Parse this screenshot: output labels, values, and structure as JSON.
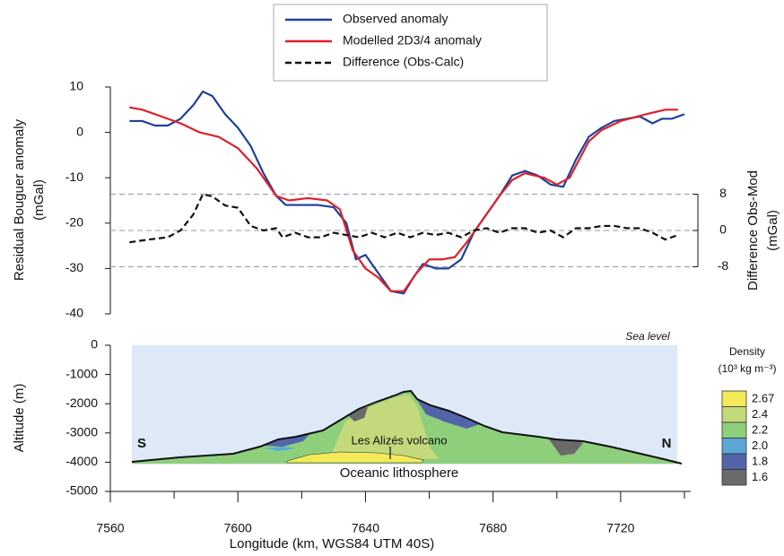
{
  "chart_data": [
    {
      "type": "line",
      "ylabel": [
        "Residual Bouguer anomaly",
        "(mGal)"
      ],
      "y2label": [
        "Difference Obs-Mod",
        "(mGal)"
      ],
      "xlim": [
        7560,
        7740
      ],
      "ylim": [
        -40,
        10
      ],
      "yticks": [
        -40,
        -30,
        -20,
        -10,
        0,
        10
      ],
      "y2lim": [
        -8,
        8
      ],
      "y2ticks": [
        -8,
        0,
        8
      ],
      "grid": "y2",
      "series": [
        {
          "name": "Observed anomaly",
          "color": "#1f3f9a",
          "style": "solid",
          "x": [
            7566,
            7570,
            7574,
            7578,
            7582,
            7586,
            7589,
            7592,
            7596,
            7600,
            7604,
            7608,
            7612,
            7615,
            7620,
            7625,
            7630,
            7634,
            7637,
            7640,
            7644,
            7648,
            7652,
            7655,
            7658,
            7662,
            7666,
            7670,
            7674,
            7678,
            7682,
            7686,
            7690,
            7694,
            7698,
            7702,
            7706,
            7710,
            7714,
            7718,
            7722,
            7726,
            7730,
            7733,
            7736,
            7740
          ],
          "values": [
            2.5,
            2.5,
            1.5,
            1.5,
            3,
            6,
            9,
            8,
            4,
            1,
            -3,
            -9,
            -14,
            -16,
            -16,
            -16,
            -16.5,
            -20,
            -28,
            -27,
            -31,
            -35,
            -35.5,
            -32,
            -29,
            -30,
            -30,
            -28,
            -22,
            -18,
            -14,
            -9.5,
            -8.5,
            -9.5,
            -11.5,
            -12,
            -6,
            -1,
            1,
            2.5,
            3,
            3.5,
            2,
            3,
            3,
            4
          ]
        },
        {
          "name": "Modelled 2D3/4 anomaly",
          "color": "#e0202a",
          "style": "solid",
          "x": [
            7566,
            7570,
            7576,
            7582,
            7588,
            7594,
            7600,
            7606,
            7612,
            7616,
            7622,
            7628,
            7632,
            7636,
            7640,
            7644,
            7648,
            7652,
            7656,
            7660,
            7664,
            7668,
            7672,
            7678,
            7682,
            7686,
            7690,
            7696,
            7700,
            7704,
            7710,
            7714,
            7720,
            7728,
            7734,
            7738
          ],
          "values": [
            5.5,
            5,
            3.5,
            2,
            0,
            -1,
            -3.5,
            -8,
            -14,
            -15,
            -14.5,
            -15,
            -17,
            -26,
            -30,
            -32,
            -35,
            -35,
            -31,
            -28,
            -28,
            -27.5,
            -24,
            -18,
            -14,
            -10.5,
            -9,
            -10,
            -11.5,
            -10,
            -2,
            0.5,
            2.5,
            4,
            5,
            5
          ]
        },
        {
          "name": "Difference (Obs-Calc)",
          "color": "#111111",
          "style": "dashed",
          "axis": "y2",
          "x": [
            7566,
            7572,
            7578,
            7582,
            7586,
            7589,
            7592,
            7596,
            7600,
            7604,
            7608,
            7612,
            7614,
            7618,
            7622,
            7626,
            7630,
            7634,
            7638,
            7642,
            7646,
            7650,
            7654,
            7658,
            7662,
            7666,
            7670,
            7674,
            7678,
            7682,
            7686,
            7690,
            7694,
            7698,
            7702,
            7706,
            7710,
            7714,
            7718,
            7722,
            7726,
            7730,
            7734,
            7738
          ],
          "values": [
            -2.6,
            -2,
            -1.5,
            0,
            3.5,
            8,
            7.5,
            5.5,
            5,
            1,
            0,
            0.5,
            -1.5,
            -0.5,
            -1.5,
            -1.5,
            -0.5,
            -1,
            -1.5,
            -0.5,
            -1.5,
            -0.5,
            -1.5,
            -0.5,
            -1,
            -0.5,
            -1.5,
            0,
            0.5,
            -0.5,
            0.5,
            0.5,
            -0.5,
            0,
            -1.5,
            0.5,
            0.5,
            1,
            1,
            0.5,
            0.5,
            -0.5,
            -2,
            -1
          ]
        }
      ]
    },
    {
      "type": "section",
      "xlabel": "Longitude (km, WGS84 UTM 40S)",
      "ylabel": "Altitude (m)",
      "xlim": [
        7560,
        7740
      ],
      "xticks": [
        7560,
        7600,
        7640,
        7680,
        7720
      ],
      "minor_xticks": [
        7580,
        7620,
        7660,
        7700,
        7740
      ],
      "ylim": [
        -5000,
        0
      ],
      "yticks": [
        -5000,
        -4000,
        -3000,
        -2000,
        -1000,
        0
      ],
      "annotations": [
        "Sea level",
        "S",
        "N",
        "Les Alizés volcano",
        "Oceanic lithosphere"
      ],
      "legend_title": [
        "Density",
        "(10³ kg m⁻³)"
      ],
      "densities": [
        {
          "label": "2.67",
          "color": "#f3ea5a"
        },
        {
          "label": "2.4",
          "color": "#c3d97c"
        },
        {
          "label": "2.2",
          "color": "#8ecf7c"
        },
        {
          "label": "2.0",
          "color": "#5ba8d6"
        },
        {
          "label": "1.8",
          "color": "#5365a8"
        },
        {
          "label": "1.6",
          "color": "#6a6a6a"
        }
      ]
    }
  ]
}
